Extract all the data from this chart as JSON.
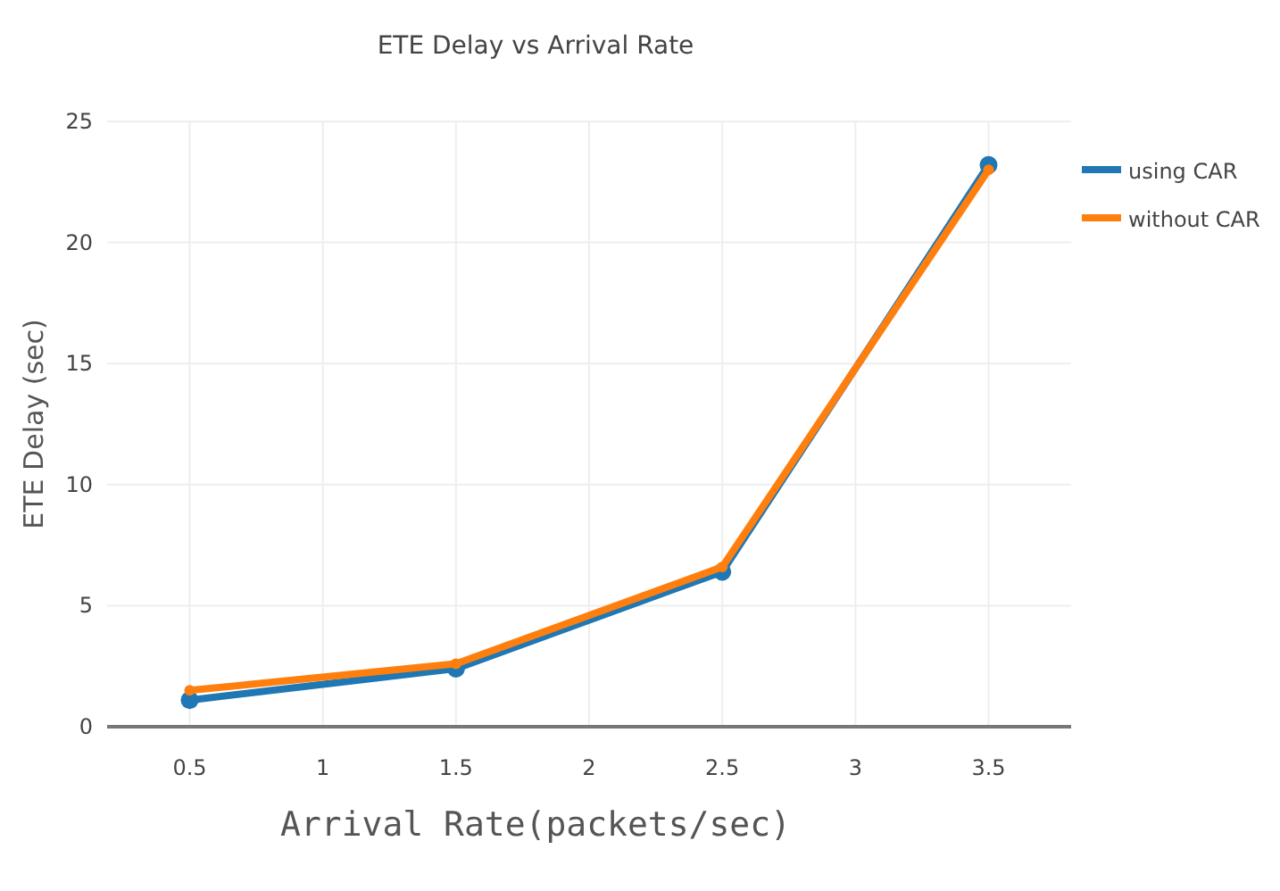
{
  "chart_data": {
    "type": "line",
    "title": "ETE Delay vs Arrival Rate",
    "xlabel": "Arrival Rate(packets/sec)",
    "ylabel": "ETE Delay (sec)",
    "x": [
      0.5,
      1.5,
      2.5,
      3.5
    ],
    "series": [
      {
        "name": "using CAR",
        "color": "#1f77b4",
        "values": [
          1.1,
          2.4,
          6.4,
          23.2
        ]
      },
      {
        "name": "without CAR",
        "color": "#ff7f0e",
        "values": [
          1.5,
          2.6,
          6.6,
          23.0
        ]
      }
    ],
    "xlim": [
      0.19,
      3.81
    ],
    "xticks": [
      0.5,
      1,
      1.5,
      2,
      2.5,
      3,
      3.5
    ],
    "ylim": [
      0,
      25
    ],
    "yticks": [
      0,
      5,
      10,
      15,
      20,
      25
    ],
    "grid": true,
    "legend": "top right",
    "marker": "circle",
    "line_style": "solid"
  }
}
